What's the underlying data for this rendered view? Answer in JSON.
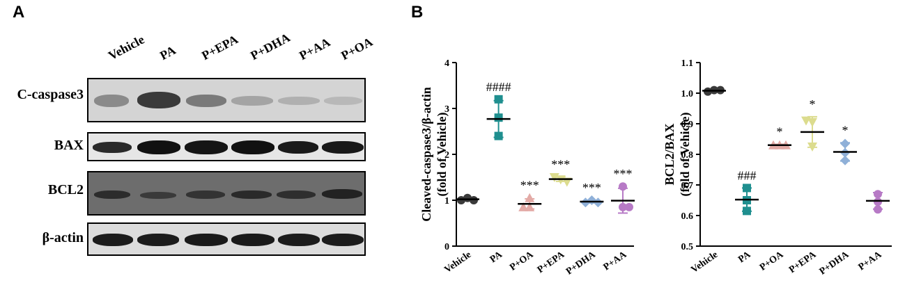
{
  "panels": {
    "a": "A",
    "b": "B"
  },
  "lanes": [
    "Vehicle",
    "PA",
    "P+EPA",
    "P+DHA",
    "P+AA",
    "P+OA"
  ],
  "blot_labels": [
    "C-caspase3",
    "BAX",
    "BCL2",
    "β-actin"
  ],
  "colors": {
    "Vehicle": "#3a3a3a",
    "PA": "#1f8f8f",
    "P+OA": "#e3aaa6",
    "P+EPA": "#dcdc8e",
    "P+DHA": "#8fb0d8",
    "P+AA": "#b77ac6"
  },
  "chart_data": [
    {
      "type": "scatter",
      "ylabel_line1": "Cleaved-caspase3/β-actin",
      "ylabel_line2": "(fold of Vehicle)",
      "ylim": [
        0,
        4
      ],
      "yticks": [
        "0",
        "1",
        "2",
        "3",
        "4"
      ],
      "categories": [
        "Vehicle",
        "PA",
        "P+OA",
        "P+EPA",
        "P+DHA",
        "P+AA"
      ],
      "markers": [
        "circle",
        "square",
        "triangle-up",
        "triangle-down",
        "diamond",
        "circle"
      ],
      "points": [
        [
          1.0,
          1.05,
          1.0
        ],
        [
          3.2,
          2.8,
          2.4
        ],
        [
          0.85,
          0.85,
          1.05
        ],
        [
          1.5,
          1.45,
          1.4
        ],
        [
          0.95,
          1.0,
          0.95
        ],
        [
          1.3,
          0.85,
          0.85
        ]
      ],
      "means": [
        1.02,
        2.77,
        0.92,
        1.46,
        0.97,
        0.99
      ],
      "sds": [
        0.02,
        0.4,
        0.11,
        0.05,
        0.03,
        0.27
      ],
      "annotations": [
        "",
        "####",
        "***",
        "***",
        "***",
        "***"
      ]
    },
    {
      "type": "scatter",
      "ylabel_line1": "BCL2/BAX",
      "ylabel_line2": "(fold of Vehicle)",
      "ylim": [
        0.5,
        1.1
      ],
      "yticks": [
        "0.5",
        "0.6",
        "0.7",
        "0.8",
        "0.9",
        "1.0",
        "1.1"
      ],
      "categories": [
        "Vehicle",
        "PA",
        "P+OA",
        "P+EPA",
        "P+DHA",
        "P+AA"
      ],
      "markers": [
        "circle",
        "square",
        "triangle-up",
        "triangle-down",
        "diamond",
        "circle"
      ],
      "points": [
        [
          1.005,
          1.01,
          1.01
        ],
        [
          0.69,
          0.65,
          0.615
        ],
        [
          0.83,
          0.83,
          0.83
        ],
        [
          0.91,
          0.905,
          0.825
        ],
        [
          0.835,
          0.805,
          0.78
        ],
        [
          0.67,
          0.645,
          0.62
        ]
      ],
      "means": [
        1.008,
        0.652,
        0.83,
        0.873,
        0.808,
        0.648
      ],
      "sds": [
        0.003,
        0.038,
        0.003,
        0.05,
        0.03,
        0.027
      ],
      "annotations": [
        "",
        "###",
        "*",
        "*",
        "*",
        ""
      ]
    }
  ]
}
